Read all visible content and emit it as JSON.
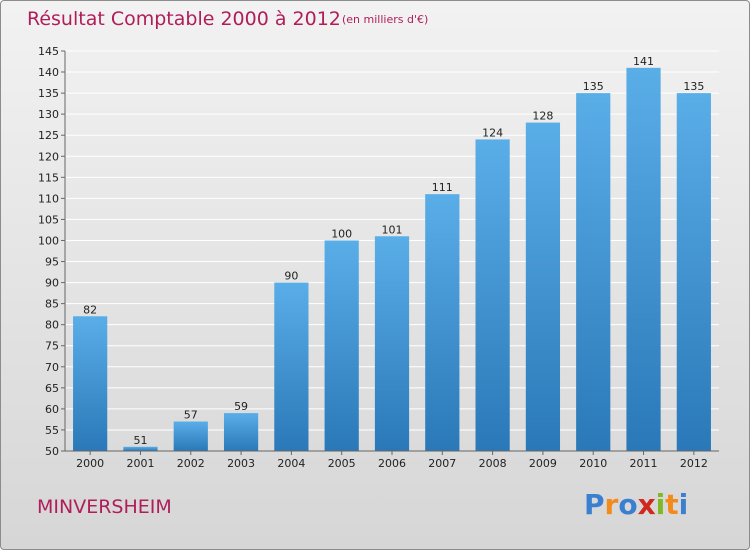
{
  "title": "Résultat Comptable 2000 à 2012",
  "subtitle": "(en milliers d'€)",
  "commune": "MINVERSHEIM",
  "brand": {
    "letters": [
      "P",
      "r",
      "o",
      "x",
      "i",
      "t",
      "i"
    ],
    "colors": [
      "#3a7fd0",
      "#f28a1c",
      "#3a7fd0",
      "#d0281e",
      "#7fb928",
      "#f28a1c",
      "#3a7fd0"
    ]
  },
  "colors": {
    "title": "#b01e5a",
    "bar_top": "#5aaee8",
    "bar_bottom": "#2a78b8"
  },
  "chart_data": {
    "type": "bar",
    "categories": [
      "2000",
      "2001",
      "2002",
      "2003",
      "2004",
      "2005",
      "2006",
      "2007",
      "2008",
      "2009",
      "2010",
      "2011",
      "2012"
    ],
    "values": [
      82,
      51,
      57,
      59,
      90,
      100,
      101,
      111,
      124,
      128,
      135,
      141,
      135
    ],
    "ylim": [
      50,
      145
    ],
    "yticks": [
      50,
      55,
      60,
      65,
      70,
      75,
      80,
      85,
      90,
      95,
      100,
      105,
      110,
      115,
      120,
      125,
      130,
      135,
      140,
      145
    ],
    "grid": true
  }
}
